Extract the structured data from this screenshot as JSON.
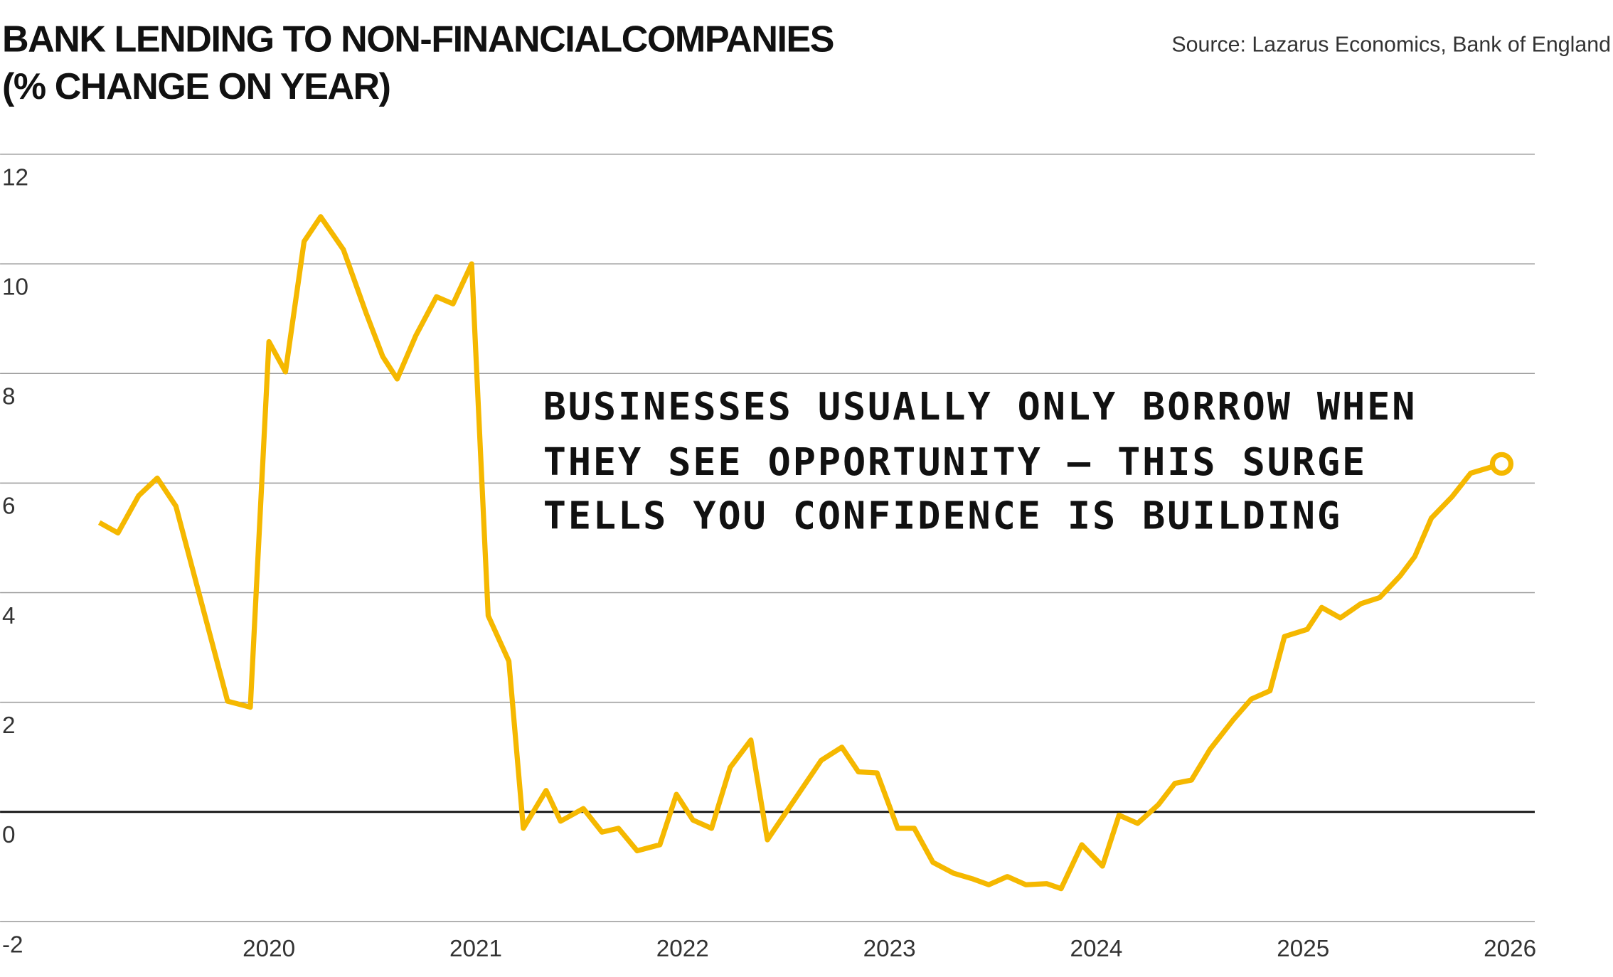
{
  "chart_data": {
    "type": "line",
    "title": [
      "BANK LENDING TO NON-FINANCIALCOMPANIES",
      "(% CHANGE ON YEAR)"
    ],
    "source": "Source: Lazarus Economics, Bank of England",
    "annotation": [
      "BUSINESSES USUALLY ONLY BORROW WHEN",
      "THEY SEE OPPORTUNITY — THIS SURGE",
      "TELLS YOU CONFIDENCE IS BUILDING"
    ],
    "x": [
      2019.18,
      2019.27,
      2019.37,
      2019.46,
      2019.55,
      2019.8,
      2019.91,
      2020.0,
      2020.08,
      2020.17,
      2020.25,
      2020.36,
      2020.47,
      2020.55,
      2020.62,
      2020.71,
      2020.81,
      2020.89,
      2020.98,
      2021.06,
      2021.16,
      2021.23,
      2021.34,
      2021.41,
      2021.52,
      2021.61,
      2021.69,
      2021.78,
      2021.89,
      2021.97,
      2022.05,
      2022.14,
      2022.23,
      2022.33,
      2022.41,
      2022.67,
      2022.77,
      2022.85,
      2022.94,
      2023.04,
      2023.12,
      2023.21,
      2023.31,
      2023.4,
      2023.48,
      2023.57,
      2023.66,
      2023.76,
      2023.83,
      2023.93,
      2024.03,
      2024.11,
      2024.2,
      2024.3,
      2024.38,
      2024.46,
      2024.55,
      2024.66,
      2024.75,
      2024.84,
      2024.91,
      2025.02,
      2025.09,
      2025.18,
      2025.28,
      2025.37,
      2025.47,
      2025.54,
      2025.62,
      2025.72,
      2025.81,
      2025.96
    ],
    "series": [
      {
        "name": "Bank lending",
        "color": "#f5b800",
        "values": [
          5.28,
          5.09,
          5.77,
          6.09,
          5.58,
          2.02,
          1.91,
          8.58,
          8.03,
          10.41,
          10.86,
          10.26,
          9.1,
          8.31,
          7.9,
          8.69,
          9.4,
          9.27,
          10.0,
          3.58,
          2.75,
          -0.3,
          0.39,
          -0.17,
          0.06,
          -0.37,
          -0.3,
          -0.71,
          -0.6,
          0.32,
          -0.15,
          -0.3,
          0.81,
          1.31,
          -0.51,
          0.94,
          1.18,
          0.73,
          0.71,
          -0.3,
          -0.3,
          -0.92,
          -1.12,
          -1.22,
          -1.33,
          -1.18,
          -1.33,
          -1.31,
          -1.4,
          -0.6,
          -0.99,
          -0.06,
          -0.21,
          0.13,
          0.52,
          0.58,
          1.14,
          1.67,
          2.06,
          2.21,
          3.2,
          3.33,
          3.73,
          3.54,
          3.8,
          3.91,
          4.31,
          4.66,
          5.36,
          5.75,
          6.18,
          6.35
        ]
      }
    ],
    "xlim": [
      2018.7,
      2026.12
    ],
    "xticks": [
      2020,
      2021,
      2022,
      2023,
      2024,
      2025,
      2026
    ],
    "ylim": [
      -2,
      12
    ],
    "yticks": [
      -2,
      0,
      2,
      4,
      6,
      8,
      10,
      12
    ],
    "grid": true
  }
}
